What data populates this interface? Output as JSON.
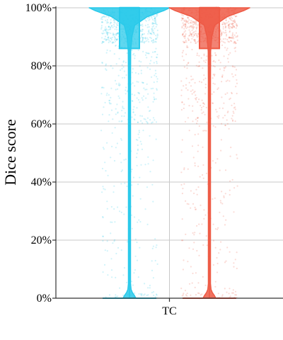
{
  "chart_data": {
    "type": "violin",
    "ylabel": "Dice score",
    "categories": [
      "TC"
    ],
    "ylim": [
      0,
      100
    ],
    "yticks": [
      "0%",
      "20%",
      "40%",
      "60%",
      "80%",
      "100%"
    ],
    "ytick_values": [
      0,
      20,
      40,
      60,
      80,
      100
    ],
    "grid": true,
    "legend": "none",
    "series": [
      {
        "color": "#29C9EA",
        "box": {
          "q1": 86,
          "median": 100,
          "q3": 100,
          "min": 0,
          "max": 100
        },
        "density": [
          [
            0,
            0.16
          ],
          [
            1,
            0.12
          ],
          [
            2,
            0.07
          ],
          [
            3,
            0.04
          ],
          [
            5,
            0.02
          ],
          [
            10,
            0.012
          ],
          [
            20,
            0.01
          ],
          [
            40,
            0.01
          ],
          [
            60,
            0.012
          ],
          [
            75,
            0.015
          ],
          [
            85,
            0.03
          ],
          [
            90,
            0.06
          ],
          [
            94,
            0.13
          ],
          [
            97,
            0.45
          ],
          [
            99,
            0.85
          ],
          [
            100,
            1.0
          ]
        ]
      },
      {
        "color": "#EE5A45",
        "box": {
          "q1": 86,
          "median": 100,
          "q3": 100,
          "min": 0,
          "max": 100
        },
        "density": [
          [
            0,
            0.16
          ],
          [
            1,
            0.12
          ],
          [
            2,
            0.07
          ],
          [
            3,
            0.04
          ],
          [
            5,
            0.02
          ],
          [
            10,
            0.012
          ],
          [
            20,
            0.01
          ],
          [
            40,
            0.01
          ],
          [
            60,
            0.012
          ],
          [
            75,
            0.015
          ],
          [
            85,
            0.03
          ],
          [
            90,
            0.06
          ],
          [
            94,
            0.13
          ],
          [
            97,
            0.45
          ],
          [
            99,
            0.85
          ],
          [
            100,
            1.0
          ]
        ]
      }
    ]
  }
}
